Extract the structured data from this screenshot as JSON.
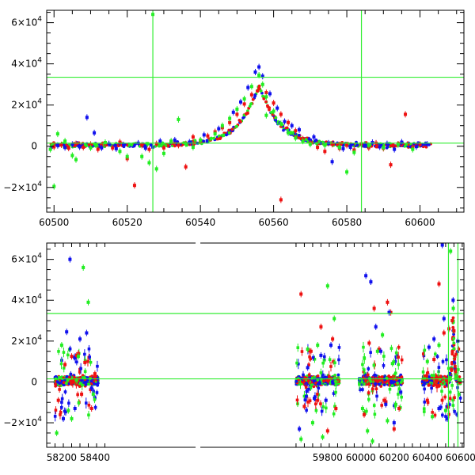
{
  "chart_data": [
    {
      "type": "scatter",
      "title": "",
      "xlabel": "",
      "ylabel": "",
      "xlim": [
        60498,
        60612
      ],
      "ylim": [
        -32000,
        66000
      ],
      "x_ticks": [
        60500,
        60520,
        60540,
        60560,
        60580,
        60600
      ],
      "x_tick_labels": [
        "60500",
        "60520",
        "60540",
        "60560",
        "60580",
        "60600"
      ],
      "y_ticks": [
        -20000,
        0,
        20000,
        40000,
        60000
      ],
      "y_tick_labels": [
        {
          "mant": "−2×10",
          "exp": "4"
        },
        {
          "mant": "0",
          "exp": ""
        },
        {
          "mant": "2×10",
          "exp": "4"
        },
        {
          "mant": "4×10",
          "exp": "4"
        },
        {
          "mant": "6×10",
          "exp": "4"
        }
      ],
      "grid": false,
      "reference_lines": {
        "vertical": [
          60527,
          60584
        ],
        "horizontal": [
          33500,
          1500
        ],
        "color": "#33ee33"
      },
      "series": [
        {
          "color": "#ee1111",
          "points": [
            [
              60500,
              -300
            ],
            [
              60502,
              700
            ],
            [
              60504,
              -900
            ],
            [
              60506,
              1200
            ],
            [
              60508,
              -500
            ],
            [
              60510,
              900
            ],
            [
              60512,
              -1500
            ],
            [
              60514,
              1000
            ],
            [
              60516,
              -800
            ],
            [
              60518,
              2000
            ],
            [
              60520,
              -6000
            ],
            [
              60522,
              -19000
            ],
            [
              60524,
              500
            ],
            [
              60526,
              -1500
            ],
            [
              60528,
              1200
            ],
            [
              60530,
              -800
            ],
            [
              60532,
              2000
            ],
            [
              60534,
              500
            ],
            [
              60536,
              -10000
            ],
            [
              60538,
              4500
            ],
            [
              60540,
              2500
            ],
            [
              60542,
              5000
            ],
            [
              60544,
              7000
            ],
            [
              60546,
              9000
            ],
            [
              60548,
              11500
            ],
            [
              60550,
              15500
            ],
            [
              60552,
              20500
            ],
            [
              60554,
              25000
            ],
            [
              60556,
              28000
            ],
            [
              60558,
              26000
            ],
            [
              60560,
              21000
            ],
            [
              60562,
              15500
            ],
            [
              60564,
              11500
            ],
            [
              60566,
              7500
            ],
            [
              60568,
              3500
            ],
            [
              60570,
              1500
            ],
            [
              60572,
              -500
            ],
            [
              60574,
              -2500
            ],
            [
              60576,
              1000
            ],
            [
              60578,
              -1000
            ],
            [
              60580,
              500
            ],
            [
              60582,
              -1800
            ],
            [
              60584,
              1200
            ],
            [
              60586,
              -700
            ],
            [
              60588,
              1500
            ],
            [
              60590,
              -1000
            ],
            [
              60592,
              -9000
            ],
            [
              60594,
              1000
            ],
            [
              60596,
              15500
            ],
            [
              60598,
              -500
            ],
            [
              60600,
              800
            ],
            [
              60562,
              -26000
            ]
          ]
        },
        {
          "color": "#1111ee",
          "points": [
            [
              60501,
              400
            ],
            [
              60503,
              -600
            ],
            [
              60505,
              900
            ],
            [
              60507,
              -300
            ],
            [
              60509,
              14000
            ],
            [
              60511,
              6500
            ],
            [
              60513,
              -800
            ],
            [
              60515,
              1200
            ],
            [
              60517,
              -1200
            ],
            [
              60519,
              700
            ],
            [
              60523,
              1500
            ],
            [
              60525,
              -900
            ],
            [
              60527,
              -400
            ],
            [
              60529,
              2500
            ],
            [
              60533,
              3000
            ],
            [
              60537,
              2000
            ],
            [
              60541,
              5500
            ],
            [
              60545,
              8500
            ],
            [
              60549,
              16500
            ],
            [
              60551,
              21500
            ],
            [
              60553,
              28500
            ],
            [
              60555,
              36000
            ],
            [
              60556,
              38500
            ],
            [
              60557,
              34000
            ],
            [
              60559,
              25500
            ],
            [
              60561,
              18500
            ],
            [
              60563,
              12000
            ],
            [
              60565,
              10000
            ],
            [
              60567,
              8000
            ],
            [
              60571,
              4500
            ],
            [
              60575,
              1500
            ],
            [
              60579,
              -1200
            ],
            [
              60581,
              -500
            ],
            [
              60585,
              600
            ],
            [
              60587,
              1800
            ],
            [
              60589,
              -300
            ],
            [
              60591,
              1200
            ],
            [
              60593,
              -1500
            ],
            [
              60595,
              2000
            ],
            [
              60599,
              -200
            ],
            [
              60602,
              1000
            ],
            [
              60497,
              -7000
            ],
            [
              60576,
              -7500
            ]
          ]
        },
        {
          "color": "#22ee22",
          "points": [
            [
              60499,
              -1500
            ],
            [
              60501,
              6000
            ],
            [
              60503,
              2500
            ],
            [
              60505,
              -4500
            ],
            [
              60506,
              -6500
            ],
            [
              60510,
              -800
            ],
            [
              60514,
              1800
            ],
            [
              60518,
              -2500
            ],
            [
              60520,
              -5000
            ],
            [
              60524,
              -5000
            ],
            [
              60526,
              -8000
            ],
            [
              60528,
              -11000
            ],
            [
              60530,
              -3500
            ],
            [
              60532,
              2500
            ],
            [
              60534,
              13000
            ],
            [
              60536,
              1200
            ],
            [
              60538,
              -500
            ],
            [
              60540,
              3000
            ],
            [
              60544,
              6000
            ],
            [
              60546,
              10000
            ],
            [
              60548,
              13500
            ],
            [
              60550,
              18000
            ],
            [
              60552,
              23000
            ],
            [
              60554,
              29000
            ],
            [
              60556,
              34500
            ],
            [
              60557,
              30000
            ],
            [
              60558,
              24000
            ],
            [
              60560,
              17000
            ],
            [
              60562,
              11000
            ],
            [
              60564,
              6500
            ],
            [
              60566,
              4000
            ],
            [
              60568,
              2500
            ],
            [
              60570,
              1000
            ],
            [
              60574,
              500
            ],
            [
              60578,
              -500
            ],
            [
              60580,
              -12500
            ],
            [
              60582,
              -3000
            ],
            [
              60586,
              400
            ],
            [
              60590,
              -600
            ],
            [
              60594,
              800
            ],
            [
              60598,
              -1500
            ],
            [
              60527,
              64000
            ],
            [
              60500,
              -19500
            ],
            [
              60558,
              15000
            ]
          ]
        }
      ]
    },
    {
      "type": "scatter",
      "title": "",
      "xlabel": "",
      "ylabel": "",
      "xlim": [
        58110,
        60620
      ],
      "ylim": [
        -32000,
        68000
      ],
      "x_ticks": [
        58200,
        58400,
        59800,
        60000,
        60200,
        60400,
        60600
      ],
      "x_tick_labels": [
        "58200",
        "58400",
        "59800",
        "60000",
        "60200",
        "60400",
        "60600"
      ],
      "broken_axis_gap": [
        58470,
        59570
      ],
      "y_ticks": [
        -20000,
        0,
        20000,
        40000,
        60000
      ],
      "y_tick_labels": [
        {
          "mant": "−2×10",
          "exp": "4"
        },
        {
          "mant": "0",
          "exp": ""
        },
        {
          "mant": "2×10",
          "exp": "4"
        },
        {
          "mant": "4×10",
          "exp": "4"
        },
        {
          "mant": "6×10",
          "exp": "4"
        }
      ],
      "grid": false,
      "reference_lines": {
        "vertical": [
          60527,
          60584
        ],
        "horizontal": [
          33500,
          1500
        ],
        "color": "#33ee33"
      },
      "observing_seasons": [
        [
          58160,
          58420
        ],
        [
          59610,
          59870
        ],
        [
          59990,
          60250
        ],
        [
          60370,
          60600
        ]
      ],
      "series": [
        {
          "color": "#ee1111",
          "points": [
            [
              58180,
              -9000
            ],
            [
              58220,
              8500
            ],
            [
              58260,
              12500
            ],
            [
              58290,
              13000
            ],
            [
              58320,
              -6000
            ],
            [
              58340,
              9500
            ],
            [
              58380,
              -13000
            ],
            [
              58400,
              4000
            ],
            [
              59640,
              43000
            ],
            [
              59660,
              -12000
            ],
            [
              59700,
              15000
            ],
            [
              59740,
              -9000
            ],
            [
              59760,
              27000
            ],
            [
              59800,
              -24000
            ],
            [
              59830,
              21000
            ],
            [
              59850,
              -13000
            ],
            [
              60020,
              -16000
            ],
            [
              60050,
              19000
            ],
            [
              60080,
              36000
            ],
            [
              60110,
              16000
            ],
            [
              60140,
              -9000
            ],
            [
              60160,
              39000
            ],
            [
              60180,
              34000
            ],
            [
              60200,
              -23000
            ],
            [
              60230,
              -13000
            ],
            [
              60400,
              -9000
            ],
            [
              60440,
              11000
            ],
            [
              60470,
              48000
            ],
            [
              60500,
              24000
            ],
            [
              60530,
              26000
            ],
            [
              60550,
              30000
            ],
            [
              60560,
              25000
            ]
          ]
        },
        {
          "color": "#1111ee",
          "points": [
            [
              58210,
              -18000
            ],
            [
              58230,
              24500
            ],
            [
              58250,
              60000
            ],
            [
              58280,
              -13000
            ],
            [
              58310,
              21000
            ],
            [
              58350,
              24000
            ],
            [
              58380,
              -3000
            ],
            [
              59630,
              -23000
            ],
            [
              59680,
              7000
            ],
            [
              59720,
              -8000
            ],
            [
              59760,
              13000
            ],
            [
              59790,
              -9000
            ],
            [
              59820,
              18000
            ],
            [
              60030,
              52000
            ],
            [
              60060,
              49000
            ],
            [
              60090,
              27000
            ],
            [
              60120,
              15000
            ],
            [
              60150,
              -11000
            ],
            [
              60170,
              34000
            ],
            [
              60200,
              -20000
            ],
            [
              60240,
              -5000
            ],
            [
              60410,
              17000
            ],
            [
              60440,
              21000
            ],
            [
              60470,
              -13000
            ],
            [
              60500,
              31000
            ],
            [
              60520,
              -18000
            ],
            [
              60555,
              40000
            ],
            [
              60583,
              20000
            ],
            [
              60490,
              67000
            ]
          ]
        },
        {
          "color": "#22ee22",
          "points": [
            [
              58170,
              -25000
            ],
            [
              58200,
              18000
            ],
            [
              58240,
              -14000
            ],
            [
              58260,
              -18000
            ],
            [
              58300,
              12500
            ],
            [
              58330,
              56000
            ],
            [
              58360,
              39000
            ],
            [
              58390,
              -6000
            ],
            [
              59640,
              -28000
            ],
            [
              59680,
              16000
            ],
            [
              59710,
              -20000
            ],
            [
              59740,
              18000
            ],
            [
              59770,
              -27000
            ],
            [
              59800,
              47000
            ],
            [
              59840,
              31000
            ],
            [
              60010,
              -13000
            ],
            [
              60040,
              -24000
            ],
            [
              60070,
              -29000
            ],
            [
              60100,
              15000
            ],
            [
              60130,
              23000
            ],
            [
              60160,
              -19000
            ],
            [
              60190,
              9000
            ],
            [
              60210,
              -11000
            ],
            [
              60400,
              10000
            ],
            [
              60430,
              -17000
            ],
            [
              60470,
              18000
            ],
            [
              60510,
              -14000
            ],
            [
              60540,
              64000
            ],
            [
              60556,
              36000
            ],
            [
              60590,
              -6000
            ]
          ]
        }
      ]
    }
  ]
}
